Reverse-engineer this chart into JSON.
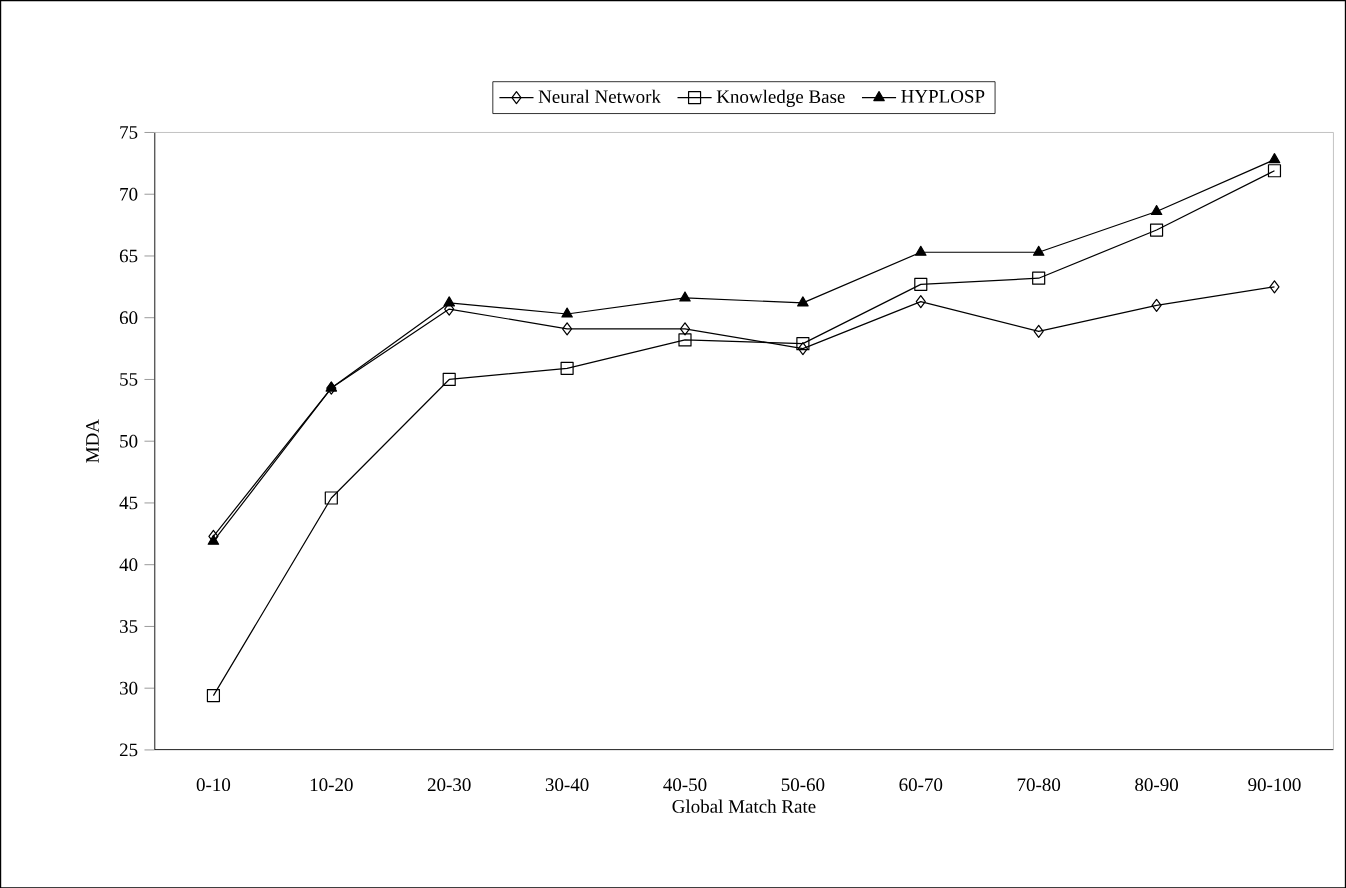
{
  "chart_data": {
    "type": "line",
    "xlabel": "Global Match Rate",
    "ylabel": "MDA",
    "categories": [
      "0-10",
      "10-20",
      "20-30",
      "30-40",
      "40-50",
      "50-60",
      "60-70",
      "70-80",
      "80-90",
      "90-100"
    ],
    "series": [
      {
        "name": "Neural Network",
        "color": "#000000",
        "marker": "diamond",
        "values": [
          42.3,
          54.3,
          60.7,
          59.1,
          59.1,
          57.5,
          61.3,
          58.9,
          61.0,
          62.5
        ]
      },
      {
        "name": "Knowledge Base",
        "color": "#000000",
        "marker": "square",
        "values": [
          29.4,
          45.4,
          55.0,
          55.9,
          58.2,
          57.9,
          62.7,
          63.2,
          67.1,
          71.9
        ]
      },
      {
        "name": "HYPLOSP",
        "color": "#000000",
        "marker": "triangle",
        "values": [
          41.9,
          54.3,
          61.2,
          60.3,
          61.6,
          61.2,
          65.3,
          65.3,
          68.6,
          72.8
        ]
      }
    ],
    "ylim": [
      25,
      75
    ],
    "yticks": [
      25,
      30,
      35,
      40,
      45,
      50,
      55,
      60,
      65,
      70,
      75
    ],
    "grid": false,
    "legend": "top",
    "line_style": "solid"
  }
}
